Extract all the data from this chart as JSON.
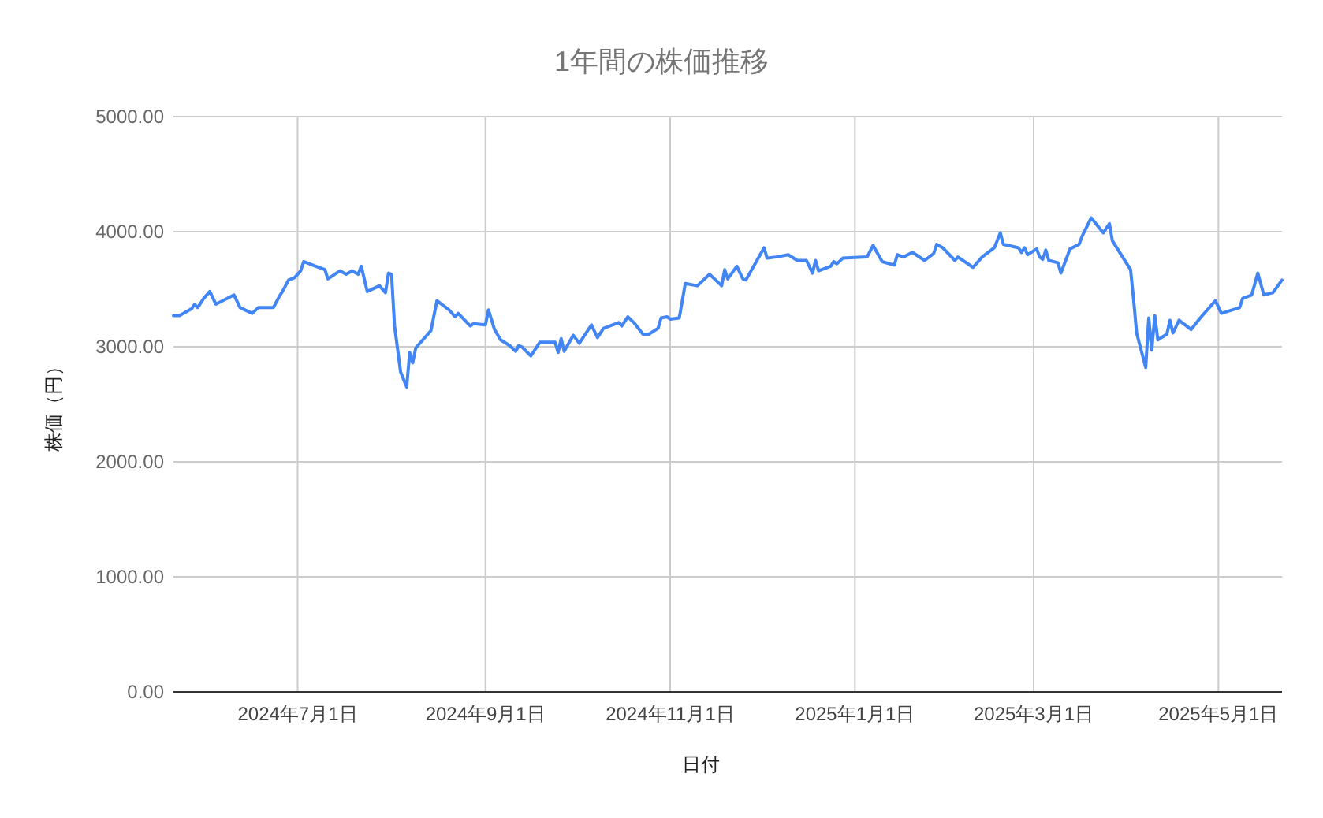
{
  "chart_data": {
    "type": "line",
    "title": "1年間の株価推移",
    "xlabel": "日付",
    "ylabel": "株価（円）",
    "color": "#4285f4",
    "grid": true,
    "xlim": [
      "2024-05-21",
      "2025-05-22"
    ],
    "xticks": [
      {
        "value": "2024-07-01",
        "label": "2024年7月1日"
      },
      {
        "value": "2024-09-01",
        "label": "2024年9月1日"
      },
      {
        "value": "2024-11-01",
        "label": "2024年11月1日"
      },
      {
        "value": "2025-01-01",
        "label": "2025年1月1日"
      },
      {
        "value": "2025-03-01",
        "label": "2025年3月1日"
      },
      {
        "value": "2025-05-01",
        "label": "2025年5月1日"
      }
    ],
    "ylim": [
      0,
      5000
    ],
    "yticks": [
      {
        "value": 0,
        "label": "0.00"
      },
      {
        "value": 1000,
        "label": "1000.00"
      },
      {
        "value": 2000,
        "label": "2000.00"
      },
      {
        "value": 3000,
        "label": "3000.00"
      },
      {
        "value": 4000,
        "label": "4000.00"
      },
      {
        "value": 5000,
        "label": "5000.00"
      }
    ],
    "x": [
      "2024-05-21",
      "2024-05-23",
      "2024-05-27",
      "2024-05-28",
      "2024-05-29",
      "2024-05-31",
      "2024-06-02",
      "2024-06-04",
      "2024-06-10",
      "2024-06-12",
      "2024-06-16",
      "2024-06-18",
      "2024-06-23",
      "2024-06-25",
      "2024-06-26",
      "2024-06-28",
      "2024-06-30",
      "2024-07-02",
      "2024-07-03",
      "2024-07-07",
      "2024-07-10",
      "2024-07-11",
      "2024-07-15",
      "2024-07-17",
      "2024-07-19",
      "2024-07-21",
      "2024-07-22",
      "2024-07-24",
      "2024-07-28",
      "2024-07-30",
      "2024-07-31",
      "2024-08-01",
      "2024-08-02",
      "2024-08-04",
      "2024-08-06",
      "2024-08-07",
      "2024-08-08",
      "2024-08-09",
      "2024-08-14",
      "2024-08-16",
      "2024-08-20",
      "2024-08-22",
      "2024-08-23",
      "2024-08-27",
      "2024-08-28",
      "2024-09-01",
      "2024-09-02",
      "2024-09-04",
      "2024-09-06",
      "2024-09-09",
      "2024-09-11",
      "2024-09-12",
      "2024-09-13",
      "2024-09-16",
      "2024-09-19",
      "2024-09-24",
      "2024-09-25",
      "2024-09-26",
      "2024-09-27",
      "2024-09-30",
      "2024-10-02",
      "2024-10-06",
      "2024-10-08",
      "2024-10-10",
      "2024-10-15",
      "2024-10-16",
      "2024-10-18",
      "2024-10-20",
      "2024-10-23",
      "2024-10-25",
      "2024-10-28",
      "2024-10-29",
      "2024-10-31",
      "2024-11-01",
      "2024-11-04",
      "2024-11-06",
      "2024-11-10",
      "2024-11-12",
      "2024-11-14",
      "2024-11-18",
      "2024-11-19",
      "2024-11-20",
      "2024-11-23",
      "2024-11-25",
      "2024-11-26",
      "2024-12-02",
      "2024-12-03",
      "2024-12-06",
      "2024-12-10",
      "2024-12-13",
      "2024-12-16",
      "2024-12-18",
      "2024-12-19",
      "2024-12-20",
      "2024-12-24",
      "2024-12-25",
      "2024-12-26",
      "2024-12-28",
      "2025-01-05",
      "2025-01-07",
      "2025-01-10",
      "2025-01-14",
      "2025-01-15",
      "2025-01-17",
      "2025-01-20",
      "2025-01-24",
      "2025-01-27",
      "2025-01-28",
      "2025-01-30",
      "2025-02-03",
      "2025-02-04",
      "2025-02-09",
      "2025-02-12",
      "2025-02-16",
      "2025-02-18",
      "2025-02-19",
      "2025-02-24",
      "2025-02-25",
      "2025-02-26",
      "2025-02-27",
      "2025-03-02",
      "2025-03-03",
      "2025-03-04",
      "2025-03-05",
      "2025-03-06",
      "2025-03-09",
      "2025-03-10",
      "2025-03-13",
      "2025-03-16",
      "2025-03-17",
      "2025-03-20",
      "2025-03-24",
      "2025-03-26",
      "2025-03-27",
      "2025-04-02",
      "2025-04-03",
      "2025-04-04",
      "2025-04-07",
      "2025-04-08",
      "2025-04-09",
      "2025-04-10",
      "2025-04-11",
      "2025-04-14",
      "2025-04-15",
      "2025-04-16",
      "2025-04-18",
      "2025-04-22",
      "2025-04-25",
      "2025-04-30",
      "2025-05-02",
      "2025-05-08",
      "2025-05-09",
      "2025-05-12",
      "2025-05-14",
      "2025-05-16",
      "2025-05-19",
      "2025-05-22"
    ],
    "values": [
      3270,
      3270,
      3330,
      3370,
      3340,
      3420,
      3480,
      3370,
      3450,
      3340,
      3290,
      3340,
      3340,
      3440,
      3480,
      3580,
      3600,
      3660,
      3740,
      3700,
      3670,
      3590,
      3660,
      3630,
      3660,
      3630,
      3700,
      3480,
      3530,
      3470,
      3640,
      3630,
      3180,
      2780,
      2650,
      2950,
      2860,
      2990,
      3140,
      3400,
      3320,
      3260,
      3290,
      3180,
      3200,
      3190,
      3320,
      3150,
      3060,
      3010,
      2960,
      3010,
      3000,
      2920,
      3040,
      3040,
      2950,
      3070,
      2960,
      3100,
      3030,
      3190,
      3080,
      3160,
      3210,
      3180,
      3260,
      3210,
      3110,
      3110,
      3160,
      3250,
      3260,
      3240,
      3250,
      3550,
      3530,
      3580,
      3630,
      3530,
      3670,
      3590,
      3700,
      3590,
      3580,
      3860,
      3770,
      3780,
      3800,
      3750,
      3750,
      3640,
      3750,
      3660,
      3700,
      3740,
      3720,
      3770,
      3780,
      3880,
      3740,
      3710,
      3800,
      3780,
      3820,
      3750,
      3810,
      3890,
      3860,
      3750,
      3780,
      3690,
      3780,
      3860,
      3990,
      3890,
      3860,
      3820,
      3860,
      3800,
      3850,
      3780,
      3760,
      3840,
      3750,
      3730,
      3640,
      3850,
      3890,
      3960,
      4120,
      3990,
      4070,
      3920,
      3670,
      3410,
      3120,
      2820,
      3250,
      2970,
      3270,
      3060,
      3110,
      3230,
      3120,
      3230,
      3150,
      3250,
      3400,
      3290,
      3340,
      3420,
      3450,
      3640,
      3450,
      3470,
      3580
    ]
  }
}
